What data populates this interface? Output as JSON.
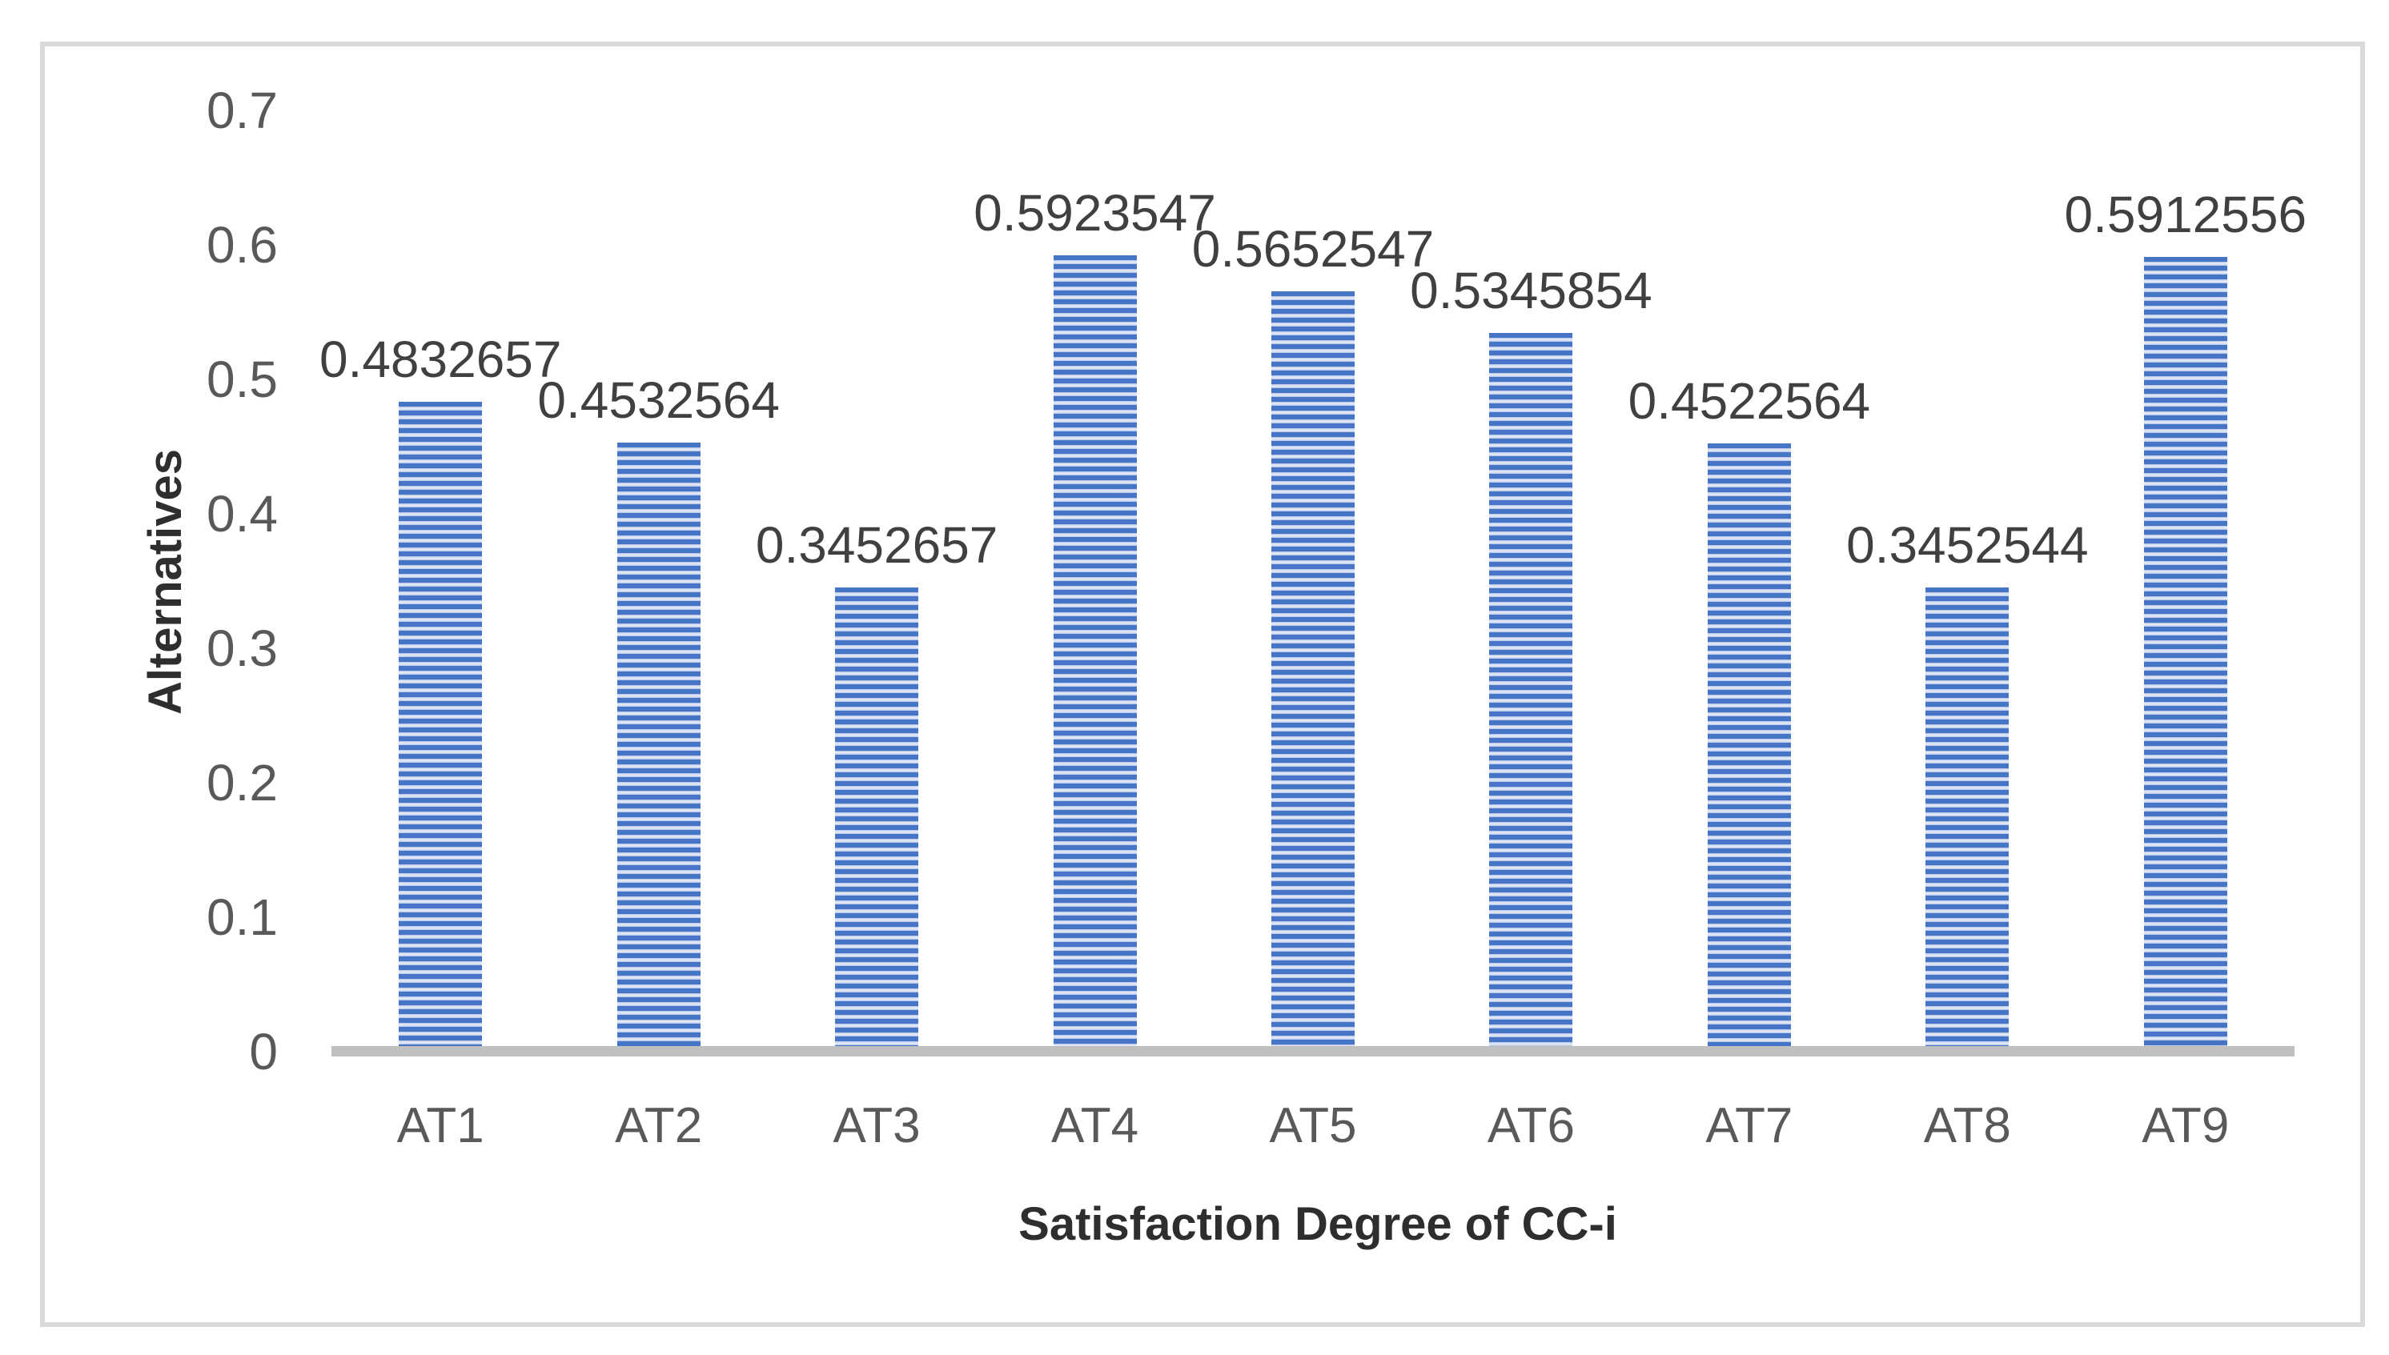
{
  "figure": {
    "frame_border_color": "#d9d9d9",
    "baseline_color": "#bfbfbf",
    "bar_stripe_dark_color": "#4674c6",
    "bar_stripe_mid_color": "#b3c3e7",
    "bar_stripe_light_color": "#e9eef8",
    "tick_label_color": "#595959",
    "data_label_color": "#404040",
    "axis_title_color": "#2e2e2e"
  },
  "chart_data": {
    "type": "bar",
    "title": "",
    "xlabel": "Satisfaction Degree of CC-i",
    "ylabel": "Alternatives",
    "categories": [
      "AT1",
      "AT2",
      "AT3",
      "AT4",
      "AT5",
      "AT6",
      "AT7",
      "AT8",
      "AT9"
    ],
    "values": [
      0.4832657,
      0.4532564,
      0.3452657,
      0.5923547,
      0.5652547,
      0.5345854,
      0.4522564,
      0.3452544,
      0.5912556
    ],
    "data_labels": [
      "0.4832657",
      "0.4532564",
      "0.3452657",
      "0.5923547",
      "0.5652547",
      "0.5345854",
      "0.4522564",
      "0.3452544",
      "0.5912556"
    ],
    "ylim": [
      0,
      0.7
    ],
    "ytick_labels": [
      "0",
      "0.1",
      "0.2",
      "0.3",
      "0.4",
      "0.5",
      "0.6",
      "0.7"
    ],
    "grid": false,
    "legend": null,
    "bar_pattern": "horizontal-stripes"
  }
}
